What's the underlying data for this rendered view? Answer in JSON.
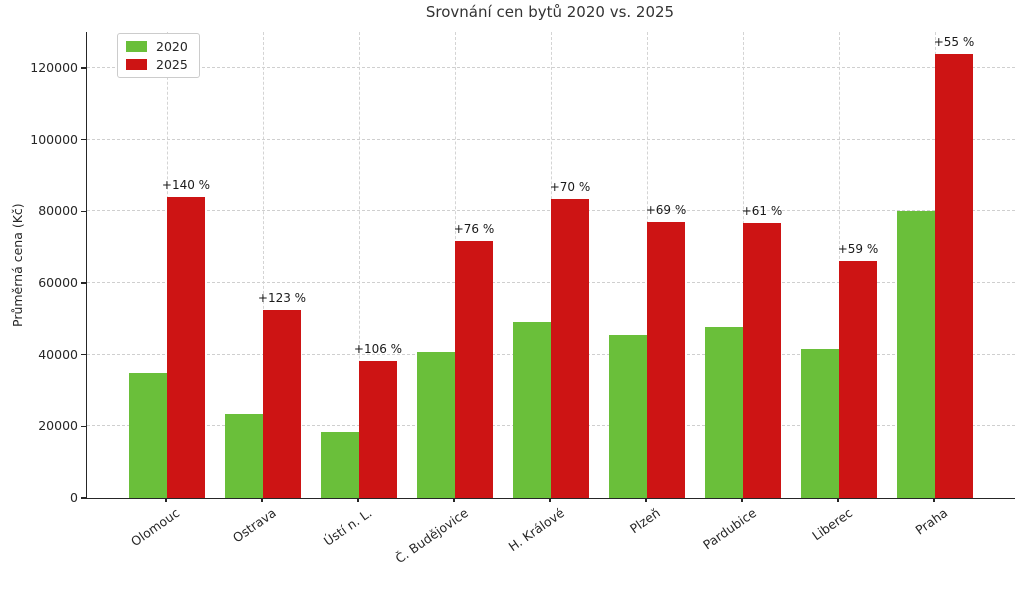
{
  "chart_data": {
    "type": "bar",
    "title": "Srovnání cen bytů 2020 vs. 2025",
    "xlabel": "",
    "ylabel": "Průměrná cena (Kč)",
    "categories": [
      "Olomouc",
      "Ostrava",
      "Ústí n. L.",
      "Č. Budějovice",
      "H. Králové",
      "Plzeň",
      "Pardubice",
      "Liberec",
      "Praha"
    ],
    "series": [
      {
        "name": "2020",
        "color": "#6abf3a",
        "values": [
          35000,
          23500,
          18500,
          40800,
          49000,
          45600,
          47700,
          41500,
          80000
        ]
      },
      {
        "name": "2025",
        "color": "#cd1414",
        "values": [
          84000,
          52500,
          38100,
          71800,
          83300,
          77100,
          76800,
          66000,
          124000
        ]
      }
    ],
    "bar_labels": [
      "+140 %",
      "+123 %",
      "+106 %",
      "+76 %",
      "+70 %",
      "+69 %",
      "+61 %",
      "+59 %",
      "+55 %"
    ],
    "ylim": [
      0,
      130000
    ],
    "yticks": [
      0,
      20000,
      40000,
      60000,
      80000,
      100000,
      120000
    ],
    "grid": true,
    "grid_style": "dashed",
    "legend_position": "upper left",
    "colors": {
      "bar_2020": "#6abf3a",
      "bar_2025": "#cd1414",
      "grid": "#cfcfcf",
      "axis": "#262626",
      "title_text": "#333333",
      "label_text": "#1a1a1a",
      "background": "#ffffff"
    }
  }
}
